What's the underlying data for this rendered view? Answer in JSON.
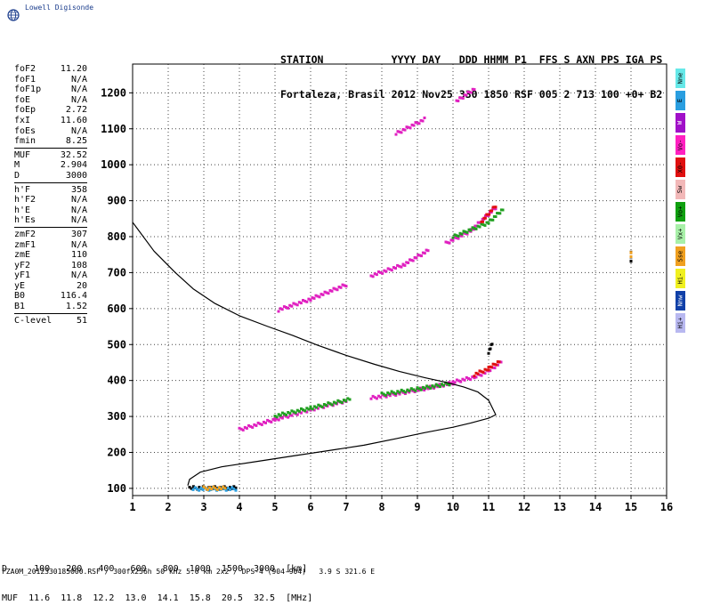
{
  "logo": {
    "name": "Lowell Digisonde"
  },
  "header": {
    "line1": "STATION           YYYY DAY   DDD HHMM P1  FFS S AXN PPS IGA PS",
    "line2": "Fortaleza, Brasil 2012 Nov25 330 1850 RSF 005 2 713 100 +0+ B2"
  },
  "params": {
    "group1": [
      {
        "label": "foF2",
        "value": "11.20"
      },
      {
        "label": "foF1",
        "value": "N/A"
      },
      {
        "label": "foF1p",
        "value": "N/A"
      },
      {
        "label": "foE",
        "value": "N/A"
      },
      {
        "label": "foEp",
        "value": "2.72"
      },
      {
        "label": "fxI",
        "value": "11.60"
      },
      {
        "label": "foEs",
        "value": "N/A"
      },
      {
        "label": "fmin",
        "value": "8.25"
      }
    ],
    "group2": [
      {
        "label": "MUF",
        "value": "32.52"
      },
      {
        "label": "M",
        "value": "2.904"
      },
      {
        "label": "D",
        "value": "3000"
      }
    ],
    "group3": [
      {
        "label": "h'F",
        "value": "358"
      },
      {
        "label": "h'F2",
        "value": "N/A"
      },
      {
        "label": "h'E",
        "value": "N/A"
      },
      {
        "label": "h'Es",
        "value": "N/A"
      }
    ],
    "group4": [
      {
        "label": "zmF2",
        "value": "307"
      },
      {
        "label": "zmF1",
        "value": "N/A"
      },
      {
        "label": "zmE",
        "value": "110"
      },
      {
        "label": "yF2",
        "value": "108"
      },
      {
        "label": "yF1",
        "value": "N/A"
      },
      {
        "label": "yE",
        "value": "20"
      },
      {
        "label": "B0",
        "value": "116.4"
      },
      {
        "label": "B1",
        "value": "1.52"
      }
    ],
    "group5": [
      {
        "label": "C-level",
        "value": "51"
      }
    ]
  },
  "legend": [
    {
      "label": "Nne",
      "color": "#66e8e8"
    },
    {
      "label": "E",
      "color": "#2a9ee0"
    },
    {
      "label": "W",
      "color": "#a010c8"
    },
    {
      "label": "Vo-",
      "color": "#ff20c0"
    },
    {
      "label": "X0-",
      "color": "#e01010"
    },
    {
      "label": "Sw",
      "color": "#f2b8b8"
    },
    {
      "label": "Vo+",
      "color": "#10a010"
    },
    {
      "label": "Vx+",
      "color": "#a8f0a8"
    },
    {
      "label": "Sse",
      "color": "#f0a020"
    },
    {
      "label": "Hi-",
      "color": "#f0f020"
    },
    {
      "label": "Nnw",
      "color": "#1040a8"
    },
    {
      "label": "Hi+",
      "color": "#b8b8f0"
    }
  ],
  "dtable": {
    "line1": "D     100   200   400   600   800  1000  1500  3000  [km]",
    "line2": "MUF  11.6  11.8  12.2  13.0  14.1  15.8  20.5  32.5  [MHz]"
  },
  "footer": "FZA0M_2012330185000.RSF / 300fx256h 50 kHz 5.0 km 2x2 / DPS-4 (904-904)   3.9 S 321.6 E",
  "chart_data": {
    "type": "scatter",
    "xlim": [
      1,
      16
    ],
    "ylim": [
      80,
      1280
    ],
    "x_ticks": [
      "1",
      "2",
      "3",
      "4",
      "5",
      "6",
      "7",
      "8",
      "9",
      "10",
      "11",
      "12",
      "13",
      "14",
      "15",
      "16"
    ],
    "y_ticks": [
      "100",
      "200",
      "300",
      "400",
      "500",
      "600",
      "700",
      "800",
      "900",
      "1000",
      "1100",
      "1200"
    ],
    "grid": true,
    "profile_curve": {
      "name": "",
      "x": [
        1.0,
        1.6,
        2.2,
        2.7,
        3.3,
        4.0,
        4.8,
        5.5,
        6.2,
        7.0,
        7.8,
        8.5,
        9.2,
        9.8,
        10.3,
        10.7,
        11.0,
        11.2,
        11.0,
        10.5,
        10.0,
        9.2,
        8.4,
        7.5,
        6.5,
        5.5,
        4.5,
        3.5,
        2.9,
        2.6,
        2.55
      ],
      "y": [
        840,
        760,
        700,
        655,
        615,
        580,
        550,
        525,
        498,
        470,
        445,
        425,
        408,
        395,
        382,
        368,
        345,
        305,
        295,
        282,
        270,
        255,
        238,
        220,
        205,
        190,
        175,
        160,
        145,
        125,
        108
      ]
    },
    "traces": [
      {
        "name": "",
        "color": "#e020c0",
        "segments": [
          {
            "x": [
              4.0,
              5.0,
              6.0,
              7.0
            ],
            "y": [
              262,
              290,
              318,
              342
            ]
          },
          {
            "x": [
              7.7,
              8.5,
              9.3,
              10.0
            ],
            "y": [
              350,
              363,
              378,
              392
            ]
          },
          {
            "x": [
              10.0,
              10.6,
              11.0,
              11.35
            ],
            "y": [
              394,
              408,
              425,
              450
            ]
          },
          {
            "x": [
              5.1,
              6.0,
              7.0
            ],
            "y": [
              595,
              625,
              665
            ]
          },
          {
            "x": [
              7.7,
              8.6,
              9.3
            ],
            "y": [
              690,
              720,
              760
            ]
          },
          {
            "x": [
              9.8,
              10.5,
              11.2
            ],
            "y": [
              780,
              815,
              880
            ]
          },
          {
            "x": [
              8.4,
              9.2
            ],
            "y": [
              1085,
              1125
            ]
          },
          {
            "x": [
              10.1,
              10.6
            ],
            "y": [
              1175,
              1210
            ]
          }
        ]
      },
      {
        "name": "",
        "color": "#20a020",
        "segments": [
          {
            "x": [
              5.0,
              6.0,
              7.1
            ],
            "y": [
              300,
              322,
              346
            ]
          },
          {
            "x": [
              8.0,
              9.0,
              9.9
            ],
            "y": [
              360,
              375,
              390
            ]
          },
          {
            "x": [
              10.0,
              11.0,
              11.4
            ],
            "y": [
              798,
              838,
              875
            ]
          }
        ]
      },
      {
        "name": "",
        "color": "#e01010",
        "segments": [
          {
            "x": [
              10.6,
              11.0,
              11.3
            ],
            "y": [
              415,
              432,
              452
            ]
          },
          {
            "x": [
              10.8,
              11.2
            ],
            "y": [
              840,
              885
            ]
          }
        ]
      },
      {
        "name": "",
        "color": "#000000",
        "segments": [
          {
            "x": [
              2.6,
              3.2,
              3.9
            ],
            "y": [
              100,
              100,
              100
            ]
          },
          {
            "x": [
              11.0,
              11.1
            ],
            "y": [
              478,
              500
            ]
          },
          {
            "x": [
              15.0,
              15.0
            ],
            "y": [
              730,
              760
            ]
          }
        ]
      },
      {
        "name": "",
        "color": "#2a9ee0",
        "segments": [
          {
            "x": [
              2.7,
              3.2,
              3.9
            ],
            "y": [
              97,
              97,
              97
            ]
          }
        ]
      },
      {
        "name": "",
        "color": "#f0a020",
        "segments": [
          {
            "x": [
              3.0,
              3.6
            ],
            "y": [
              99,
              99
            ]
          },
          {
            "x": [
              15.0,
              15.0
            ],
            "y": [
              745,
              755
            ]
          }
        ]
      }
    ]
  }
}
